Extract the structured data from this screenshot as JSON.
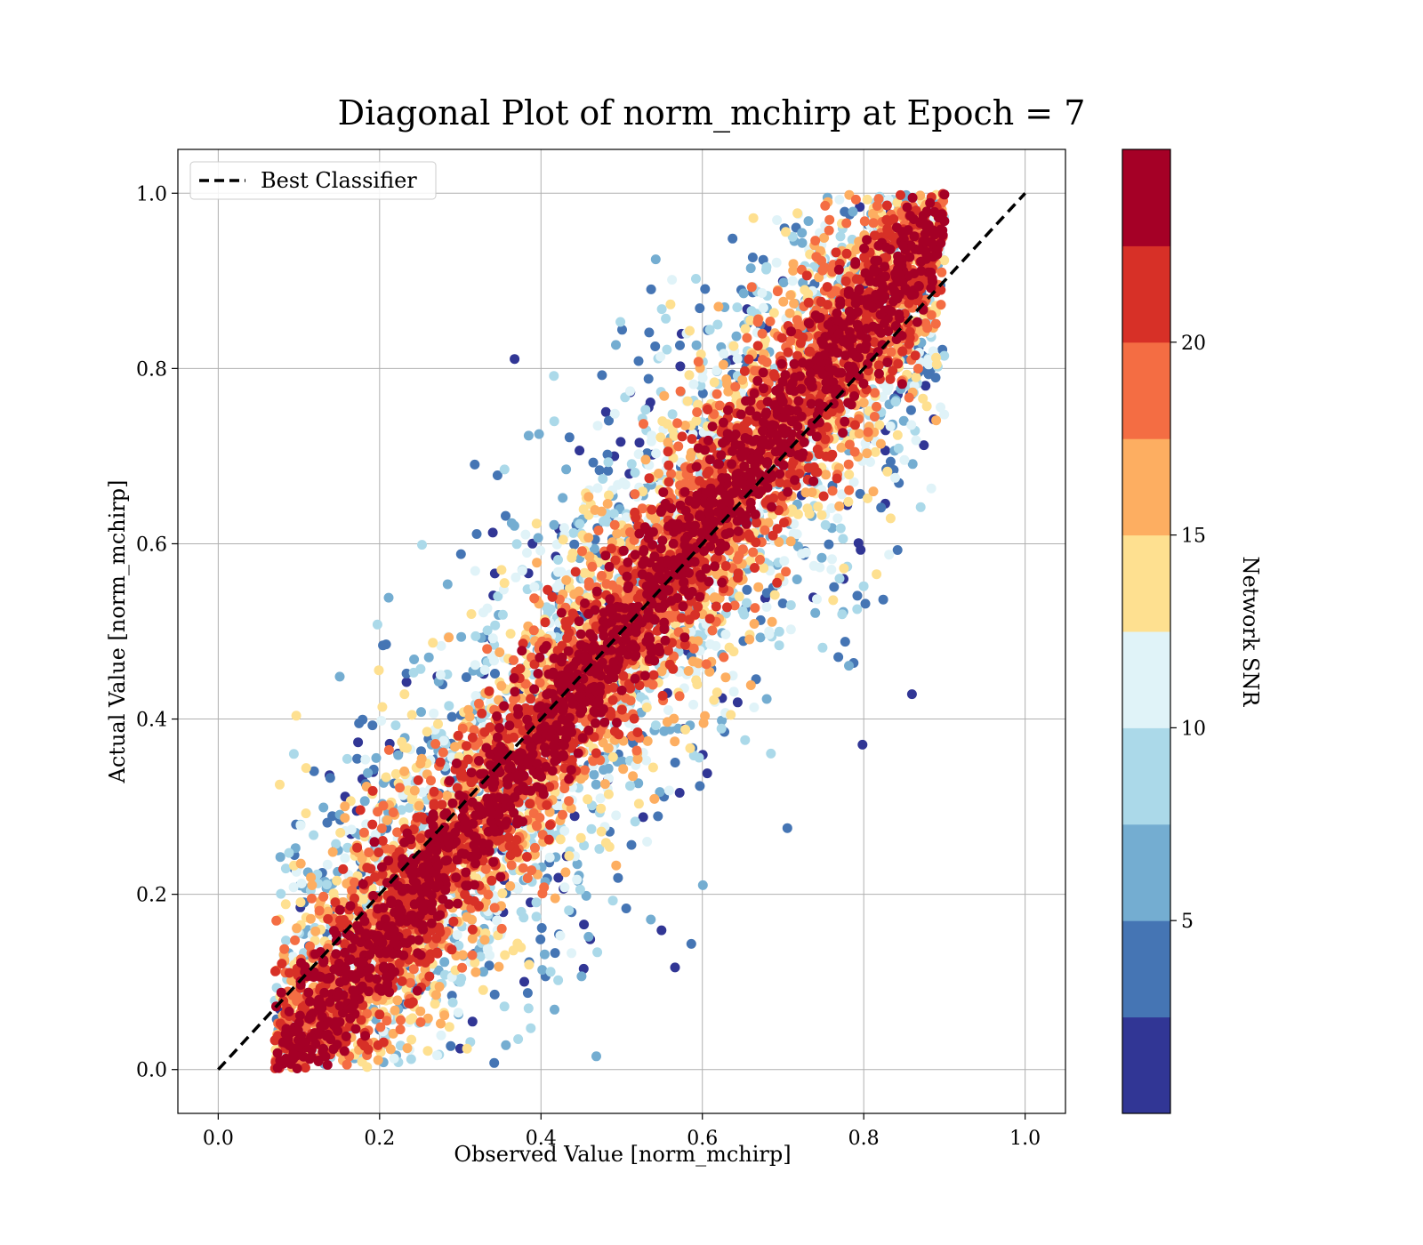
{
  "chart_data": {
    "type": "scatter",
    "title": "Diagonal Plot of norm_mchirp at Epoch = 7",
    "xlabel": "Observed Value [norm_mchirp]",
    "ylabel": "Actual Value [norm_mchirp]",
    "xlim": [
      -0.05,
      1.05
    ],
    "ylim": [
      -0.05,
      1.05
    ],
    "xticks": [
      0.0,
      0.2,
      0.4,
      0.6,
      0.8,
      1.0
    ],
    "yticks": [
      0.0,
      0.2,
      0.4,
      0.6,
      0.8,
      1.0
    ],
    "xtick_labels": [
      "0.0",
      "0.2",
      "0.4",
      "0.6",
      "0.8",
      "1.0"
    ],
    "ytick_labels": [
      "0.0",
      "0.2",
      "0.4",
      "0.6",
      "0.8",
      "1.0"
    ],
    "grid": true,
    "legend": {
      "placement": "top-left",
      "label": "Best Classifier"
    },
    "reference_line": {
      "name": "Best Classifier",
      "x": [
        0.0,
        1.0
      ],
      "y": [
        0.0,
        1.0
      ],
      "style": "dashed",
      "color": "#000000"
    },
    "colorbar": {
      "label": "Network SNR",
      "range": [
        0,
        25
      ],
      "ticks": [
        5,
        10,
        15,
        20
      ],
      "tick_labels": [
        "5",
        "10",
        "15",
        "20"
      ],
      "colors": [
        "#313695",
        "#4575b4",
        "#74add1",
        "#abd9e9",
        "#e0f3f8",
        "#fee090",
        "#fdae61",
        "#f46d43",
        "#d73027",
        "#a50026"
      ]
    },
    "scatter_summary": {
      "point_count_approx": 40000,
      "trend": "points lie along the y = x diagonal; high-SNR points (dark red) tightly follow the diagonal, low-SNR points (blue) scatter farther above and below it",
      "x_range": [
        0.07,
        0.9
      ],
      "y_range": [
        0.0,
        1.0
      ],
      "high_snr_band_halfwidth": 0.07,
      "low_snr_spread": 0.3
    }
  }
}
